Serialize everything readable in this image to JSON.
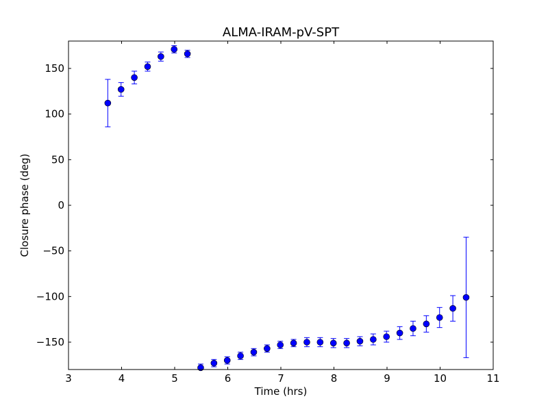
{
  "chart_data": {
    "type": "scatter",
    "title": "ALMA-IRAM-pV-SPT",
    "xlabel": "Time (hrs)",
    "ylabel": "Closure phase (deg)",
    "xlim": [
      3,
      11
    ],
    "ylim": [
      -180,
      180
    ],
    "xticks": [
      3,
      4,
      5,
      6,
      7,
      8,
      9,
      10,
      11
    ],
    "yticks": [
      -150,
      -100,
      -50,
      0,
      50,
      100,
      150
    ],
    "ytick_labels": [
      "−150",
      "−100",
      "−50",
      "0",
      "50",
      "100",
      "150"
    ],
    "grid": false,
    "color": "#0000ff",
    "series": [
      {
        "name": "closure phase",
        "x": [
          3.74,
          3.99,
          4.24,
          4.49,
          4.74,
          4.99,
          5.24,
          5.49,
          5.74,
          5.99,
          6.24,
          6.49,
          6.74,
          6.99,
          7.24,
          7.49,
          7.74,
          7.99,
          8.24,
          8.49,
          8.74,
          8.99,
          9.24,
          9.49,
          9.74,
          9.99,
          10.24,
          10.49
        ],
        "y": [
          112,
          127,
          140,
          152,
          163,
          171,
          166,
          -178,
          -173,
          -170,
          -165,
          -161,
          -157,
          -153,
          -151,
          -150,
          -150,
          -151,
          -151,
          -149,
          -147,
          -144,
          -140,
          -135,
          -130,
          -123,
          -113,
          -101
        ],
        "yerr": [
          26,
          7.5,
          7,
          5,
          5,
          4,
          4,
          4,
          4,
          4,
          4,
          4,
          4,
          4,
          4,
          5,
          5,
          5,
          5,
          5,
          6,
          6,
          7,
          8,
          9,
          11,
          14,
          66
        ]
      }
    ]
  }
}
